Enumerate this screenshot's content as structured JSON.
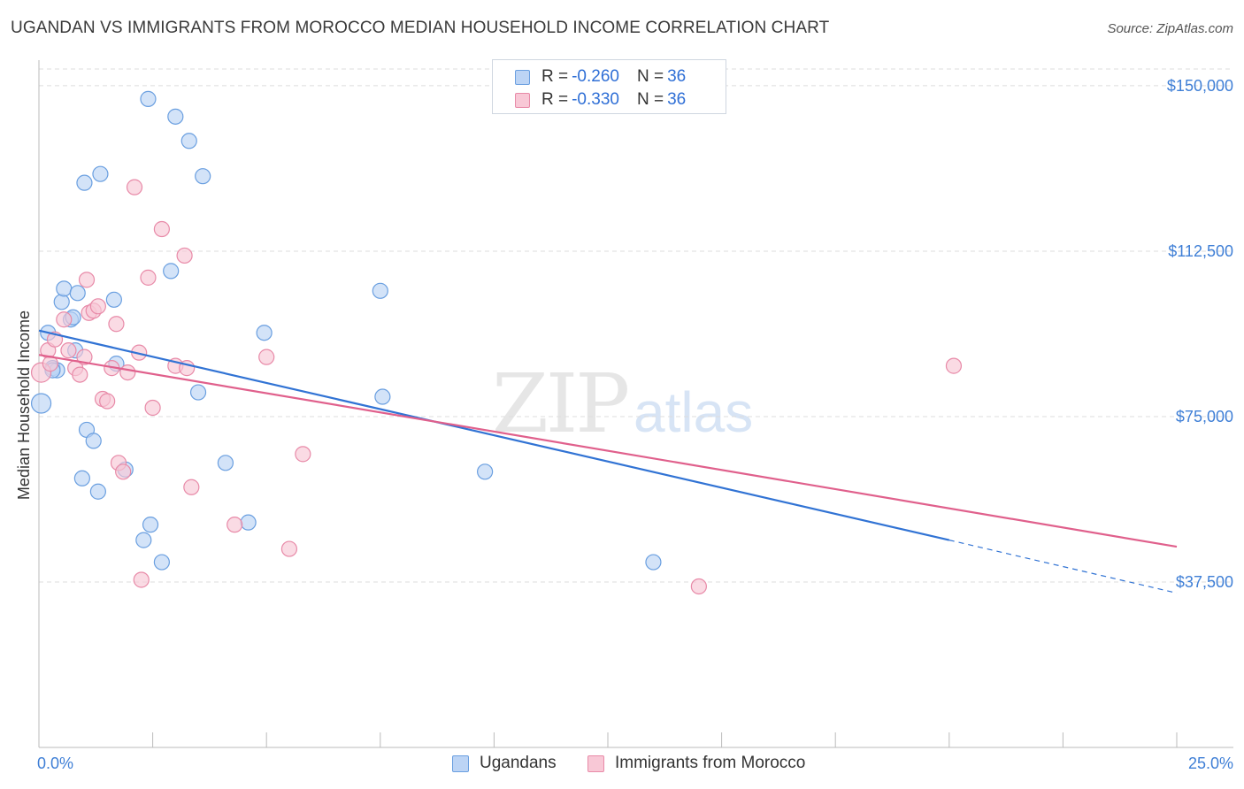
{
  "title": "UGANDAN VS IMMIGRANTS FROM MOROCCO MEDIAN HOUSEHOLD INCOME CORRELATION CHART",
  "source": "Source: ZipAtlas.com",
  "watermark": {
    "zip": "ZIP",
    "atlas": "atlas"
  },
  "legend": {
    "items": [
      {
        "r_label": "R = ",
        "r_value": "-0.260",
        "n_label": "N = ",
        "n_value": "36"
      },
      {
        "r_label": "R = ",
        "r_value": "-0.330",
        "n_label": "N = ",
        "n_value": "36"
      }
    ]
  },
  "bottom_legend": {
    "series1": "Ugandans",
    "series2": "Immigrants from Morocco"
  },
  "colors": {
    "blue_fill": "#bcd4f5",
    "blue_stroke": "#6a9fe0",
    "blue_line": "#3173d4",
    "pink_fill": "#f8c8d6",
    "pink_stroke": "#e88aa8",
    "pink_line": "#e0608c",
    "tick_label": "#3f7fd6",
    "grid": "#dddddd"
  },
  "chart_data": {
    "type": "scatter",
    "title": "UGANDAN VS IMMIGRANTS FROM MOROCCO MEDIAN HOUSEHOLD INCOME CORRELATION CHART",
    "xlabel": "",
    "ylabel": "Median Household Income",
    "xlim": [
      0,
      25
    ],
    "ylim": [
      0,
      155000
    ],
    "x_tick_labels": [
      "0.0%",
      "25.0%"
    ],
    "y_ticks": [
      37500,
      75000,
      112500,
      150000
    ],
    "y_tick_labels": [
      "$37,500",
      "$75,000",
      "$112,500",
      "$150,000"
    ],
    "grid": "horizontal dashed",
    "legend_position": "top-center",
    "series": [
      {
        "name": "Ugandans",
        "color": "#6a9fe0",
        "points": [
          [
            0.05,
            78000
          ],
          [
            0.2,
            94000
          ],
          [
            0.3,
            86000
          ],
          [
            0.4,
            85500
          ],
          [
            0.5,
            101000
          ],
          [
            0.55,
            104000
          ],
          [
            0.7,
            97000
          ],
          [
            0.75,
            97500
          ],
          [
            0.8,
            90000
          ],
          [
            0.85,
            103000
          ],
          [
            0.95,
            61000
          ],
          [
            1.0,
            128000
          ],
          [
            1.05,
            72000
          ],
          [
            1.2,
            69500
          ],
          [
            1.3,
            58000
          ],
          [
            1.35,
            130000
          ],
          [
            1.65,
            101500
          ],
          [
            1.7,
            87000
          ],
          [
            1.9,
            63000
          ],
          [
            2.3,
            47000
          ],
          [
            2.4,
            147000
          ],
          [
            2.45,
            50500
          ],
          [
            2.7,
            42000
          ],
          [
            2.9,
            108000
          ],
          [
            3.0,
            143000
          ],
          [
            3.3,
            137500
          ],
          [
            3.5,
            80500
          ],
          [
            3.6,
            129500
          ],
          [
            4.1,
            64500
          ],
          [
            4.6,
            51000
          ],
          [
            4.95,
            94000
          ],
          [
            7.5,
            103500
          ],
          [
            7.55,
            79500
          ],
          [
            9.8,
            62500
          ],
          [
            13.5,
            42000
          ],
          [
            0.3,
            85500
          ]
        ],
        "trend": {
          "x": [
            0.0,
            20.0
          ],
          "y": [
            94500,
            47000
          ],
          "dashed_extension": {
            "x": [
              20.0,
              25.0
            ],
            "y": [
              47000,
              35000
            ]
          }
        }
      },
      {
        "name": "Immigrants from Morocco",
        "color": "#e88aa8",
        "points": [
          [
            0.05,
            85000
          ],
          [
            0.2,
            90000
          ],
          [
            0.35,
            92500
          ],
          [
            0.55,
            97000
          ],
          [
            0.65,
            90000
          ],
          [
            0.8,
            86000
          ],
          [
            0.9,
            84500
          ],
          [
            1.0,
            88500
          ],
          [
            1.05,
            106000
          ],
          [
            1.1,
            98500
          ],
          [
            1.2,
            99000
          ],
          [
            1.4,
            79000
          ],
          [
            1.5,
            78500
          ],
          [
            1.6,
            86000
          ],
          [
            1.7,
            96000
          ],
          [
            1.75,
            64500
          ],
          [
            1.85,
            62500
          ],
          [
            1.95,
            85000
          ],
          [
            2.1,
            127000
          ],
          [
            2.2,
            89500
          ],
          [
            2.25,
            38000
          ],
          [
            2.4,
            106500
          ],
          [
            2.5,
            77000
          ],
          [
            2.7,
            117500
          ],
          [
            3.0,
            86500
          ],
          [
            3.2,
            111500
          ],
          [
            3.25,
            86000
          ],
          [
            3.35,
            59000
          ],
          [
            4.3,
            50500
          ],
          [
            5.0,
            88500
          ],
          [
            5.5,
            45000
          ],
          [
            5.8,
            66500
          ],
          [
            14.5,
            36500
          ],
          [
            20.1,
            86500
          ],
          [
            0.25,
            87000
          ],
          [
            1.3,
            100000
          ]
        ],
        "trend": {
          "x": [
            0.0,
            25.0
          ],
          "y": [
            89000,
            45500
          ]
        }
      }
    ]
  }
}
